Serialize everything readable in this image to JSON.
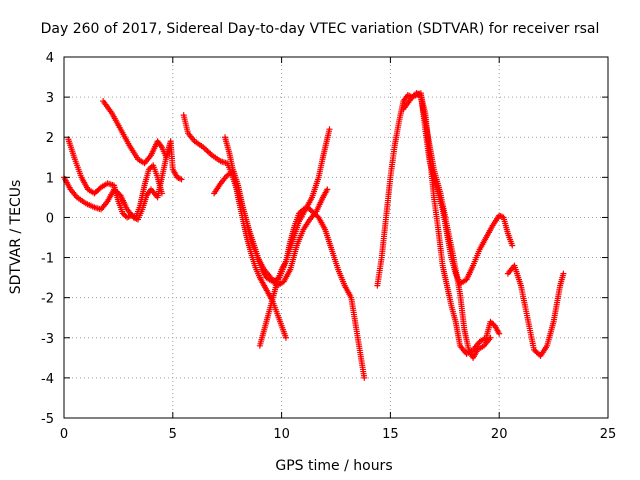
{
  "chart_data": {
    "type": "scatter",
    "title": "Day 260 of 2017, Sidereal Day-to-day VTEC variation (SDTVAR) for receiver rsal",
    "xlabel": "GPS time / hours",
    "ylabel": "SDTVAR / TECUs",
    "xlim": [
      0,
      25
    ],
    "ylim": [
      -5,
      4
    ],
    "xticks": [
      "0",
      "5",
      "10",
      "15",
      "20",
      "25"
    ],
    "yticks": [
      "-5",
      "-4",
      "-3",
      "-2",
      "-1",
      "0",
      "1",
      "2",
      "3",
      "4"
    ],
    "grid": true,
    "marker": "plus",
    "color": "#ff0000",
    "tracks": [
      [
        [
          0.0,
          1.0
        ],
        [
          0.3,
          0.7
        ],
        [
          0.6,
          0.5
        ],
        [
          1.0,
          0.35
        ],
        [
          1.4,
          0.25
        ],
        [
          1.7,
          0.2
        ],
        [
          2.0,
          0.4
        ],
        [
          2.3,
          0.7
        ],
        [
          2.6,
          0.55
        ],
        [
          2.9,
          0.2
        ],
        [
          3.2,
          0.0
        ],
        [
          3.4,
          -0.05
        ],
        [
          3.6,
          0.2
        ],
        [
          3.8,
          0.55
        ],
        [
          4.0,
          0.7
        ],
        [
          4.3,
          0.5
        ],
        [
          4.5,
          1.0
        ],
        [
          4.7,
          1.5
        ],
        [
          4.9,
          1.9
        ],
        [
          5.0,
          1.2
        ],
        [
          5.2,
          1.0
        ],
        [
          5.4,
          0.95
        ]
      ],
      [
        [
          0.2,
          1.95
        ],
        [
          0.5,
          1.45
        ],
        [
          0.8,
          1.0
        ],
        [
          1.1,
          0.7
        ],
        [
          1.4,
          0.6
        ],
        [
          1.7,
          0.75
        ],
        [
          2.0,
          0.85
        ],
        [
          2.3,
          0.8
        ],
        [
          2.5,
          0.4
        ],
        [
          2.7,
          0.1
        ],
        [
          2.9,
          0.0
        ],
        [
          3.1,
          0.05
        ],
        [
          3.3,
          0.0
        ],
        [
          3.5,
          0.3
        ],
        [
          3.7,
          0.8
        ],
        [
          3.9,
          1.2
        ],
        [
          4.1,
          1.3
        ],
        [
          4.3,
          1.0
        ],
        [
          4.5,
          0.6
        ]
      ],
      [
        [
          1.8,
          2.9
        ],
        [
          2.2,
          2.6
        ],
        [
          2.6,
          2.2
        ],
        [
          3.0,
          1.8
        ],
        [
          3.4,
          1.45
        ],
        [
          3.7,
          1.35
        ],
        [
          4.0,
          1.55
        ],
        [
          4.3,
          1.9
        ],
        [
          4.5,
          1.75
        ],
        [
          4.7,
          1.5
        ],
        [
          4.9,
          1.85
        ]
      ],
      [
        [
          5.5,
          2.55
        ],
        [
          5.7,
          2.1
        ],
        [
          6.0,
          1.9
        ],
        [
          6.4,
          1.75
        ],
        [
          6.8,
          1.55
        ],
        [
          7.2,
          1.4
        ],
        [
          7.5,
          1.35
        ],
        [
          7.7,
          1.1
        ],
        [
          8.0,
          0.6
        ],
        [
          8.3,
          0.1
        ],
        [
          8.6,
          -0.6
        ],
        [
          8.9,
          -1.0
        ],
        [
          9.2,
          -1.3
        ],
        [
          9.5,
          -1.5
        ],
        [
          9.8,
          -1.7
        ],
        [
          10.1,
          -1.6
        ],
        [
          10.4,
          -1.3
        ],
        [
          10.7,
          -0.7
        ],
        [
          11.0,
          -0.3
        ],
        [
          11.3,
          -0.05
        ],
        [
          11.6,
          0.15
        ],
        [
          11.9,
          0.5
        ],
        [
          12.1,
          0.7
        ]
      ],
      [
        [
          6.9,
          0.6
        ],
        [
          7.2,
          0.85
        ],
        [
          7.5,
          1.05
        ],
        [
          7.8,
          1.15
        ],
        [
          8.0,
          0.8
        ],
        [
          8.2,
          0.3
        ],
        [
          8.5,
          -0.3
        ],
        [
          8.8,
          -0.8
        ],
        [
          9.1,
          -1.3
        ],
        [
          9.3,
          -1.5
        ],
        [
          9.6,
          -1.6
        ],
        [
          9.9,
          -1.5
        ],
        [
          10.2,
          -1.1
        ],
        [
          10.5,
          -0.6
        ],
        [
          10.8,
          -0.1
        ],
        [
          11.1,
          0.2
        ],
        [
          11.4,
          0.5
        ],
        [
          11.7,
          1.0
        ],
        [
          11.9,
          1.5
        ],
        [
          12.2,
          2.2
        ]
      ],
      [
        [
          7.4,
          2.0
        ],
        [
          7.6,
          1.6
        ],
        [
          7.8,
          1.1
        ],
        [
          8.0,
          0.5
        ],
        [
          8.2,
          0.0
        ],
        [
          8.4,
          -0.5
        ],
        [
          8.6,
          -0.9
        ],
        [
          8.8,
          -1.25
        ],
        [
          9.0,
          -1.5
        ],
        [
          9.2,
          -1.7
        ],
        [
          9.4,
          -1.9
        ],
        [
          9.6,
          -2.1
        ],
        [
          9.8,
          -2.4
        ],
        [
          10.0,
          -2.7
        ],
        [
          10.2,
          -3.0
        ]
      ],
      [
        [
          9.0,
          -3.2
        ],
        [
          9.2,
          -2.8
        ],
        [
          9.4,
          -2.4
        ],
        [
          9.6,
          -2.0
        ],
        [
          9.8,
          -1.6
        ],
        [
          10.0,
          -1.3
        ],
        [
          10.2,
          -1.1
        ],
        [
          10.4,
          -0.6
        ],
        [
          10.6,
          -0.2
        ],
        [
          10.8,
          0.1
        ],
        [
          11.0,
          0.2
        ],
        [
          11.2,
          0.25
        ],
        [
          11.4,
          0.15
        ],
        [
          11.7,
          0.0
        ],
        [
          12.0,
          -0.3
        ],
        [
          12.3,
          -0.8
        ],
        [
          12.6,
          -1.3
        ],
        [
          12.9,
          -1.7
        ],
        [
          13.2,
          -2.0
        ],
        [
          13.5,
          -3.0
        ],
        [
          13.8,
          -4.0
        ]
      ],
      [
        [
          14.4,
          -1.7
        ],
        [
          14.6,
          -1.0
        ],
        [
          14.8,
          0.0
        ],
        [
          15.0,
          1.0
        ],
        [
          15.2,
          1.8
        ],
        [
          15.4,
          2.4
        ],
        [
          15.6,
          2.9
        ],
        [
          15.8,
          3.05
        ],
        [
          16.0,
          3.0
        ],
        [
          16.2,
          3.1
        ],
        [
          16.4,
          3.05
        ],
        [
          16.6,
          2.6
        ],
        [
          16.8,
          1.6
        ],
        [
          17.0,
          0.5
        ],
        [
          17.2,
          -0.3
        ],
        [
          17.4,
          -1.2
        ],
        [
          17.6,
          -1.7
        ],
        [
          17.8,
          -2.2
        ],
        [
          18.0,
          -2.6
        ],
        [
          18.2,
          -3.2
        ],
        [
          18.5,
          -3.4
        ],
        [
          18.8,
          -3.3
        ],
        [
          19.1,
          -3.1
        ],
        [
          19.4,
          -3.0
        ],
        [
          19.6,
          -2.6
        ],
        [
          19.8,
          -2.7
        ],
        [
          20.0,
          -2.9
        ]
      ],
      [
        [
          15.6,
          2.7
        ],
        [
          16.0,
          3.0
        ],
        [
          16.4,
          3.1
        ],
        [
          16.6,
          2.2
        ],
        [
          16.8,
          1.4
        ],
        [
          17.0,
          1.0
        ],
        [
          17.2,
          0.6
        ],
        [
          17.4,
          0.2
        ],
        [
          17.6,
          -0.4
        ],
        [
          17.8,
          -1.0
        ],
        [
          18.0,
          -1.4
        ],
        [
          18.2,
          -1.65
        ],
        [
          18.5,
          -1.55
        ],
        [
          18.8,
          -1.2
        ],
        [
          19.1,
          -0.8
        ],
        [
          19.4,
          -0.5
        ],
        [
          19.7,
          -0.2
        ],
        [
          20.0,
          0.05
        ],
        [
          20.2,
          0.0
        ],
        [
          20.4,
          -0.4
        ],
        [
          20.6,
          -0.7
        ]
      ],
      [
        [
          16.4,
          3.0
        ],
        [
          16.6,
          2.4
        ],
        [
          16.8,
          1.8
        ],
        [
          17.0,
          1.2
        ],
        [
          17.3,
          0.6
        ],
        [
          17.6,
          -0.2
        ],
        [
          17.9,
          -1.0
        ],
        [
          18.2,
          -1.9
        ],
        [
          18.4,
          -2.8
        ],
        [
          18.6,
          -3.3
        ],
        [
          18.8,
          -3.5
        ],
        [
          19.0,
          -3.3
        ],
        [
          19.3,
          -3.2
        ],
        [
          19.6,
          -3.0
        ]
      ],
      [
        [
          20.4,
          -1.4
        ],
        [
          20.7,
          -1.2
        ],
        [
          21.0,
          -1.7
        ],
        [
          21.3,
          -2.5
        ],
        [
          21.6,
          -3.3
        ],
        [
          21.9,
          -3.45
        ],
        [
          22.2,
          -3.2
        ],
        [
          22.5,
          -2.6
        ],
        [
          22.8,
          -1.7
        ],
        [
          22.95,
          -1.4
        ]
      ]
    ]
  }
}
